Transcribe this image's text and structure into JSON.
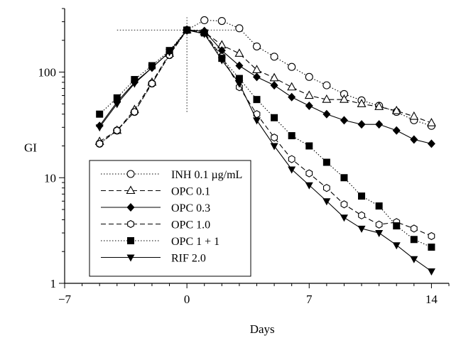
{
  "chart_data": {
    "type": "line",
    "xlabel": "Days",
    "ylabel": "GI",
    "xlim": [
      -7,
      15
    ],
    "ylim": [
      1,
      400
    ],
    "y_scale": "log",
    "x_ticks": [
      -7,
      0,
      7,
      14
    ],
    "x_tick_labels": [
      "−7",
      "0",
      "7",
      "14"
    ],
    "y_ticks": [
      1,
      10,
      100
    ],
    "y_tick_labels": [
      "1",
      "10",
      "100"
    ],
    "grid": false,
    "legend_position": "bottom-left",
    "reference_lines": [
      {
        "orientation": "horizontal",
        "y": 250,
        "x_from": -4,
        "x_to": 3
      },
      {
        "orientation": "vertical",
        "x": 0,
        "y_from": 42,
        "y_to": 330
      }
    ],
    "x": [
      -5,
      -4,
      -3,
      -2,
      -1,
      0,
      1,
      2,
      3,
      4,
      5,
      6,
      7,
      8,
      9,
      10,
      11,
      12,
      13,
      14
    ],
    "series": [
      {
        "name": "INH 0.1 µg/mL",
        "marker": "open-circle",
        "line": "dotted",
        "values": [
          21,
          28,
          42,
          78,
          145,
          250,
          310,
          305,
          260,
          175,
          140,
          112,
          90,
          75,
          62,
          54,
          48,
          42,
          35,
          31
        ]
      },
      {
        "name": "OPC 0.1",
        "marker": "open-triangle",
        "line": "dashed",
        "values": [
          22,
          28,
          44,
          80,
          150,
          250,
          240,
          180,
          150,
          105,
          88,
          72,
          60,
          55,
          55,
          50,
          47,
          43,
          38,
          33
        ]
      },
      {
        "name": "OPC 0.3",
        "marker": "filled-diamond",
        "line": "solid",
        "values": [
          31,
          52,
          80,
          110,
          155,
          250,
          245,
          160,
          115,
          90,
          75,
          58,
          48,
          40,
          35,
          32,
          32,
          28,
          23,
          21
        ]
      },
      {
        "name": "OPC 1.0",
        "marker": "open-hexagon",
        "line": "dashed",
        "values": [
          21,
          28,
          42,
          78,
          145,
          250,
          235,
          140,
          72,
          40,
          24,
          15,
          11,
          8,
          5.6,
          4.4,
          3.6,
          3.8,
          3.3,
          2.8
        ]
      },
      {
        "name": "OPC 1 + 1",
        "marker": "filled-square",
        "line": "dotted",
        "values": [
          40,
          57,
          85,
          115,
          160,
          250,
          235,
          135,
          87,
          55,
          37,
          25,
          20,
          14,
          10,
          6.7,
          5.4,
          3.5,
          2.6,
          2.2
        ]
      },
      {
        "name": "RIF 2.0",
        "marker": "filled-triangle-down",
        "line": "solid",
        "values": [
          30,
          50,
          78,
          110,
          155,
          250,
          230,
          130,
          78,
          35,
          20,
          12,
          8.5,
          6,
          4.2,
          3.3,
          3.0,
          2.3,
          1.7,
          1.3
        ]
      }
    ]
  }
}
